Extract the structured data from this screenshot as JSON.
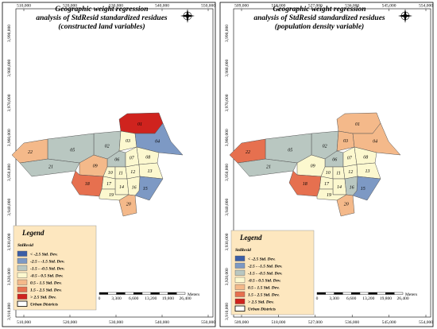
{
  "panels": [
    {
      "title": [
        "Geographic weight regression",
        "analysis of StdResid standardized residues",
        "(constructed land variables)"
      ],
      "x_labels": [
        "510,000",
        "520,000",
        "530,000",
        "540,000",
        "550,000"
      ],
      "y_labels": [
        "3,990,000",
        "3,980,000",
        "3,970,000",
        "3,960,000",
        "3,950,000",
        "3,940,000",
        "3,930,000",
        "3,920,000",
        "3,910,000"
      ],
      "districts": [
        {
          "label": "01",
          "class": 6
        },
        {
          "label": "02",
          "class": 2
        },
        {
          "label": "03",
          "class": 3
        },
        {
          "label": "04",
          "class": 1
        },
        {
          "label": "05",
          "class": 2
        },
        {
          "label": "06",
          "class": 2
        },
        {
          "label": "07",
          "class": 3
        },
        {
          "label": "08",
          "class": 3
        },
        {
          "label": "09",
          "class": 4
        },
        {
          "label": "10",
          "class": 3
        },
        {
          "label": "11",
          "class": 3
        },
        {
          "label": "12",
          "class": 3
        },
        {
          "label": "13",
          "class": 3
        },
        {
          "label": "14",
          "class": 3
        },
        {
          "label": "15",
          "class": 1
        },
        {
          "label": "16",
          "class": 3
        },
        {
          "label": "17",
          "class": 3
        },
        {
          "label": "18",
          "class": 5
        },
        {
          "label": "19",
          "class": 3
        },
        {
          "label": "20",
          "class": 4
        },
        {
          "label": "21",
          "class": 2
        },
        {
          "label": "22",
          "class": 4
        }
      ]
    },
    {
      "title": [
        "Geographic weight regression",
        "analysis of StdResid standardized residues",
        "(population density variable)"
      ],
      "x_labels": [
        "509,000",
        "518,000",
        "527,000",
        "536,000",
        "545,000",
        "554,000"
      ],
      "y_labels": [
        "3,990,000",
        "3,980,000",
        "3,970,000",
        "3,960,000",
        "3,950,000",
        "3,940,000",
        "3,930,000",
        "3,920,000",
        "3,910,000"
      ],
      "districts": [
        {
          "label": "01",
          "class": 4
        },
        {
          "label": "02",
          "class": 2
        },
        {
          "label": "03",
          "class": 4
        },
        {
          "label": "04",
          "class": 4
        },
        {
          "label": "05",
          "class": 2
        },
        {
          "label": "06",
          "class": 2
        },
        {
          "label": "07",
          "class": 3
        },
        {
          "label": "08",
          "class": 3
        },
        {
          "label": "09",
          "class": 3
        },
        {
          "label": "10",
          "class": 3
        },
        {
          "label": "11",
          "class": 3
        },
        {
          "label": "12",
          "class": 3
        },
        {
          "label": "13",
          "class": 3
        },
        {
          "label": "14",
          "class": 3
        },
        {
          "label": "15",
          "class": 1
        },
        {
          "label": "16",
          "class": 2
        },
        {
          "label": "17",
          "class": 3
        },
        {
          "label": "18",
          "class": 5
        },
        {
          "label": "19",
          "class": 3
        },
        {
          "label": "20",
          "class": 4
        },
        {
          "label": "21",
          "class": 2
        },
        {
          "label": "22",
          "class": 5
        }
      ]
    }
  ],
  "legend": {
    "title": "Legend",
    "field": "StdResid",
    "classes": [
      {
        "label": "< -2.5 Std. Dev.",
        "color": "#3b5ea6"
      },
      {
        "label": "-2.5 - -1.5 Std. Dev.",
        "color": "#7d99c4"
      },
      {
        "label": "-1.5 - -0.5 Std. Dev.",
        "color": "#b9c7c1"
      },
      {
        "label": "-0.5 - 0.5 Std. Dev.",
        "color": "#fcf8cf"
      },
      {
        "label": "0.5 - 1.5 Std. Dev.",
        "color": "#f4b98a"
      },
      {
        "label": "1.5 - 2.5 Std. Dev.",
        "color": "#e6704f"
      },
      {
        "label": "> 2.5 Std. Dev.",
        "color": "#cf231e"
      }
    ],
    "boundary": "Urban Districts"
  },
  "scale_bar": {
    "labels": [
      "0",
      "3,300",
      "6,600",
      "13,200",
      "19,800",
      "26,400"
    ],
    "unit": "Meters"
  }
}
